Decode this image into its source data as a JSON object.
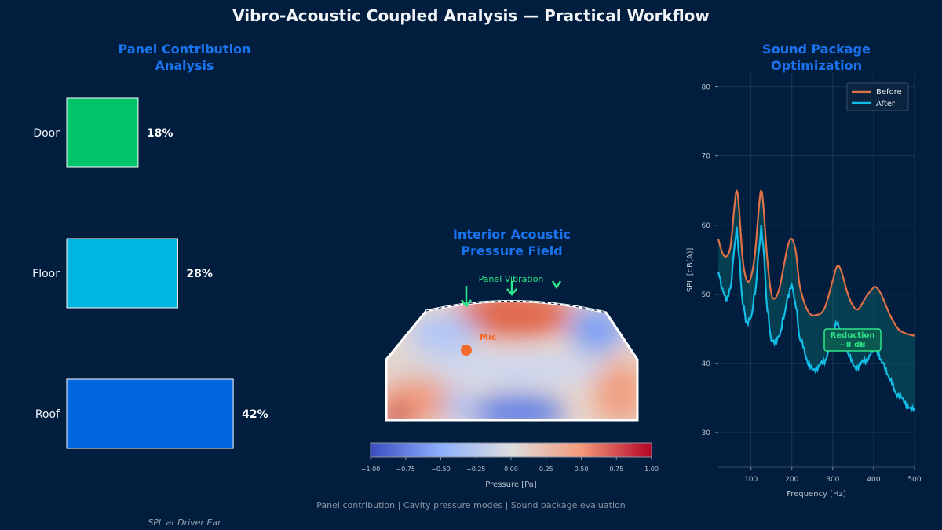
{
  "title": "Vibro-Acoustic Coupled Analysis — Practical Workflow",
  "footer": "Panel contribution | Cavity pressure modes | Sound package evaluation",
  "caption": "SPL at Driver Ear",
  "colors": {
    "background": "#011e3e",
    "accent_title": "#1a74f0",
    "door": "#00c46a",
    "floor": "#00b5e0",
    "roof": "#0066e0",
    "before": "#e07045",
    "after": "#12bde6",
    "highlight_green": "#2ee58a",
    "mic": "#f26a2e"
  },
  "panels": {
    "contribution": {
      "title": "Panel Contribution\nAnalysis"
    },
    "pressure": {
      "title": "Interior Acoustic\nPressure Field",
      "vibration_label": "Panel Vibration",
      "mic_label": "Mic",
      "colorbar_label": "Pressure [Pa]",
      "colorbar_ticks": [
        "−1.00",
        "−0.75",
        "−0.50",
        "−0.25",
        "0.00",
        "0.25",
        "0.50",
        "0.75",
        "1.00"
      ]
    },
    "sound_package": {
      "title": "Sound Package\nOptimization",
      "annotation": "Reduction\n~8 dB"
    }
  },
  "chart_data": [
    {
      "type": "bar",
      "orientation": "horizontal",
      "categories": [
        "Door",
        "Floor",
        "Roof"
      ],
      "values": [
        18,
        28,
        42
      ],
      "value_labels": [
        "18%",
        "28%",
        "42%"
      ],
      "unit": "%",
      "xlim": [
        0,
        50
      ]
    },
    {
      "type": "heatmap",
      "colorbar_range": [
        -1.0,
        1.0
      ],
      "colormap": "coolwarm"
    },
    {
      "type": "line",
      "xlabel": "Frequency [Hz]",
      "ylabel": "SPL [dB(A)]",
      "xlim": [
        20,
        500
      ],
      "ylim": [
        25,
        82
      ],
      "xticks": [
        100,
        200,
        300,
        400,
        500
      ],
      "yticks": [
        30,
        40,
        50,
        60,
        70,
        80
      ],
      "grid": true,
      "legend": "top-right",
      "series": [
        {
          "name": "Before",
          "x": [
            20,
            30,
            40,
            50,
            60,
            65,
            70,
            80,
            90,
            100,
            110,
            120,
            125,
            130,
            140,
            150,
            160,
            170,
            180,
            190,
            200,
            210,
            220,
            240,
            260,
            280,
            300,
            310,
            320,
            340,
            360,
            380,
            400,
            410,
            420,
            440,
            460,
            480,
            500
          ],
          "values": [
            58,
            56,
            55.5,
            57,
            63,
            65,
            63,
            55,
            52,
            52.5,
            56,
            63,
            65,
            63,
            55,
            50,
            49.5,
            51,
            54,
            57,
            58,
            56,
            51,
            47.5,
            47,
            48,
            52,
            54,
            53.5,
            49.5,
            47.8,
            49.5,
            51,
            50.8,
            49.8,
            47,
            45,
            44.3,
            44
          ]
        },
        {
          "name": "After",
          "x": [
            20,
            30,
            40,
            50,
            60,
            65,
            70,
            80,
            90,
            100,
            110,
            120,
            125,
            130,
            140,
            150,
            160,
            170,
            180,
            190,
            200,
            210,
            220,
            240,
            260,
            280,
            300,
            310,
            320,
            340,
            360,
            380,
            400,
            410,
            420,
            440,
            460,
            480,
            500
          ],
          "values": [
            53,
            50.5,
            49.5,
            51,
            56.5,
            59.5,
            56,
            49,
            45.5,
            46.5,
            50.5,
            56.5,
            59.5,
            56.5,
            48,
            43.5,
            42.8,
            44,
            47,
            49.5,
            51,
            48.5,
            43.5,
            40,
            39,
            40.5,
            44,
            46,
            45,
            41,
            39.3,
            40.5,
            42,
            41.5,
            40.5,
            37.5,
            35.5,
            34,
            33.5
          ]
        }
      ]
    }
  ]
}
